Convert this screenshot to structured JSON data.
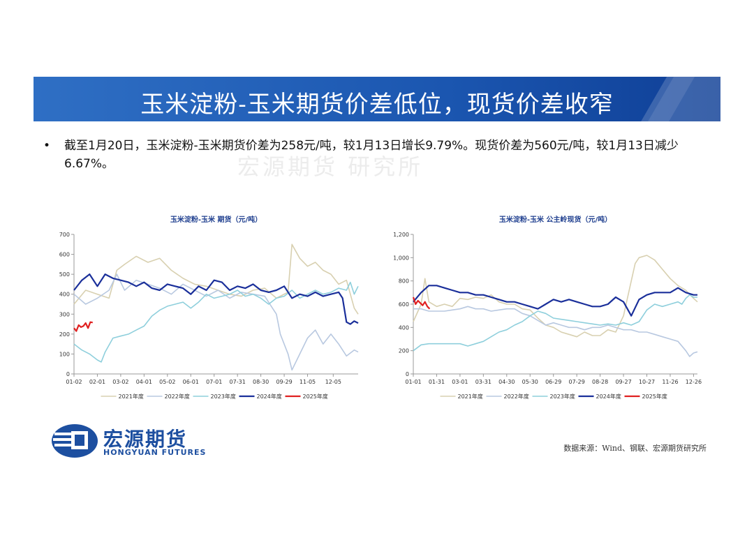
{
  "header": {
    "title": "玉米淀粉-玉米期货价差低位，现货价差收窄"
  },
  "bullet": {
    "symbol": "•",
    "text": "截至1月20日，玉米淀粉-玉米期货价差为258元/吨，较1月13日增长9.79%。现货价差为560元/吨，较1月13日减少6.67%。"
  },
  "watermark": "宏源期货 研究所",
  "logo": {
    "name": "宏源期货",
    "en": "HONGYUAN FUTURES"
  },
  "source": "数据来源：Wind、钢联、宏源期货研究所",
  "colors": {
    "title_bar": "#1b56b0",
    "c2021": "#d8d0b0",
    "c2022": "#b8c8e0",
    "c2023": "#8ecfdc",
    "c2024": "#1a2f9a",
    "c2025": "#e02020"
  },
  "chart_data": [
    {
      "type": "line",
      "title": "玉米淀粉-玉米 期货（元/吨）",
      "xlabel": "",
      "ylabel": "",
      "ylim": [
        0,
        700
      ],
      "yticks": [
        0,
        100,
        200,
        300,
        400,
        500,
        600,
        700
      ],
      "ytick_labels": [
        "0",
        "100",
        "200",
        "300",
        "400",
        "500",
        "600",
        "700"
      ],
      "x_range": [
        0,
        365
      ],
      "xtick_days": [
        0,
        30,
        60,
        90,
        120,
        150,
        180,
        210,
        240,
        270,
        300,
        333
      ],
      "xtick_labels": [
        "01-02",
        "02-01",
        "03-02",
        "04-01",
        "05-02",
        "06-01",
        "07-01",
        "07-31",
        "08-30",
        "09-29",
        "11-05",
        "12-05"
      ],
      "series": [
        {
          "name": "2021年度",
          "x": [
            0,
            15,
            30,
            45,
            55,
            65,
            80,
            95,
            110,
            125,
            140,
            155,
            170,
            185,
            200,
            215,
            230,
            245,
            260,
            275,
            280,
            290,
            300,
            310,
            320,
            330,
            340,
            350,
            360,
            365
          ],
          "y": [
            350,
            420,
            400,
            380,
            520,
            550,
            590,
            560,
            580,
            520,
            480,
            450,
            440,
            420,
            400,
            390,
            420,
            430,
            380,
            410,
            650,
            580,
            540,
            560,
            520,
            500,
            450,
            470,
            330,
            300
          ]
        },
        {
          "name": "2022年度",
          "x": [
            0,
            15,
            30,
            45,
            55,
            65,
            80,
            95,
            110,
            125,
            140,
            155,
            170,
            185,
            200,
            215,
            230,
            245,
            260,
            265,
            275,
            280,
            290,
            300,
            310,
            320,
            330,
            340,
            350,
            360,
            365
          ],
          "y": [
            400,
            350,
            380,
            420,
            500,
            420,
            470,
            450,
            430,
            400,
            450,
            420,
            390,
            420,
            380,
            410,
            400,
            390,
            300,
            200,
            100,
            20,
            100,
            180,
            220,
            150,
            200,
            150,
            90,
            120,
            110
          ]
        },
        {
          "name": "2023年度",
          "x": [
            0,
            10,
            20,
            30,
            35,
            40,
            50,
            60,
            70,
            80,
            90,
            100,
            110,
            120,
            130,
            140,
            150,
            160,
            170,
            180,
            190,
            200,
            210,
            220,
            230,
            240,
            250,
            260,
            270,
            280,
            290,
            300,
            310,
            320,
            330,
            340,
            350,
            355,
            360,
            365
          ],
          "y": [
            150,
            120,
            100,
            70,
            60,
            110,
            180,
            190,
            200,
            220,
            240,
            290,
            320,
            340,
            350,
            360,
            330,
            360,
            400,
            380,
            390,
            400,
            420,
            390,
            400,
            380,
            350,
            380,
            390,
            420,
            380,
            400,
            420,
            400,
            410,
            430,
            420,
            460,
            400,
            440
          ]
        },
        {
          "name": "2024年度",
          "x": [
            0,
            10,
            20,
            30,
            40,
            50,
            60,
            70,
            80,
            90,
            100,
            110,
            120,
            130,
            140,
            150,
            160,
            170,
            180,
            190,
            200,
            210,
            220,
            230,
            240,
            250,
            260,
            270,
            280,
            290,
            300,
            310,
            320,
            330,
            340,
            345,
            350,
            355,
            360,
            365
          ],
          "y": [
            420,
            470,
            500,
            440,
            500,
            480,
            470,
            460,
            440,
            460,
            430,
            420,
            450,
            440,
            430,
            400,
            440,
            420,
            470,
            460,
            420,
            440,
            430,
            450,
            420,
            410,
            420,
            440,
            380,
            400,
            390,
            410,
            390,
            400,
            410,
            380,
            260,
            250,
            265,
            255
          ]
        },
        {
          "name": "2025年度",
          "x": [
            0,
            3,
            6,
            9,
            12,
            15,
            18,
            21,
            24
          ],
          "y": [
            230,
            215,
            245,
            235,
            240,
            255,
            230,
            260,
            258
          ]
        }
      ]
    },
    {
      "type": "line",
      "title": "玉米淀粉-玉米 公主岭现货（元/吨）",
      "xlabel": "",
      "ylabel": "",
      "ylim": [
        0,
        1200
      ],
      "yticks": [
        0,
        200,
        400,
        600,
        800,
        1000,
        1200
      ],
      "ytick_labels": [
        "0",
        "200",
        "400",
        "600",
        "800",
        "1,000",
        "1,200"
      ],
      "x_range": [
        0,
        365
      ],
      "xtick_days": [
        0,
        30,
        60,
        90,
        120,
        150,
        180,
        210,
        240,
        270,
        300,
        330,
        360
      ],
      "xtick_labels": [
        "01-01",
        "01-31",
        "03-01",
        "03-31",
        "04-30",
        "05-30",
        "06-29",
        "07-29",
        "08-28",
        "09-27",
        "10-27",
        "11-26",
        "12-26"
      ],
      "series": [
        {
          "name": "2021年度",
          "x": [
            0,
            10,
            15,
            20,
            30,
            40,
            50,
            60,
            70,
            80,
            90,
            100,
            110,
            120,
            130,
            140,
            150,
            160,
            170,
            180,
            190,
            200,
            210,
            220,
            230,
            240,
            250,
            260,
            270,
            280,
            285,
            290,
            300,
            310,
            320,
            330,
            340,
            350,
            360,
            365
          ],
          "y": [
            450,
            600,
            820,
            620,
            580,
            600,
            580,
            650,
            640,
            660,
            650,
            680,
            620,
            600,
            600,
            560,
            550,
            480,
            420,
            400,
            360,
            340,
            320,
            360,
            330,
            330,
            380,
            360,
            500,
            800,
            950,
            1000,
            1020,
            980,
            900,
            820,
            760,
            720,
            650,
            620
          ]
        },
        {
          "name": "2022年度",
          "x": [
            0,
            10,
            20,
            30,
            40,
            50,
            60,
            70,
            80,
            90,
            100,
            110,
            120,
            130,
            140,
            150,
            160,
            170,
            180,
            190,
            200,
            210,
            220,
            230,
            240,
            250,
            260,
            270,
            280,
            290,
            300,
            310,
            320,
            330,
            340,
            350,
            355,
            360,
            365
          ],
          "y": [
            560,
            560,
            540,
            540,
            540,
            550,
            560,
            580,
            560,
            560,
            540,
            550,
            560,
            560,
            520,
            500,
            460,
            420,
            440,
            420,
            400,
            400,
            380,
            400,
            400,
            420,
            400,
            380,
            380,
            360,
            360,
            340,
            320,
            300,
            280,
            200,
            150,
            180,
            190
          ]
        },
        {
          "name": "2023年度",
          "x": [
            0,
            10,
            20,
            30,
            40,
            50,
            60,
            70,
            80,
            90,
            100,
            110,
            120,
            130,
            140,
            150,
            160,
            170,
            180,
            190,
            200,
            210,
            220,
            230,
            240,
            250,
            260,
            270,
            280,
            290,
            300,
            310,
            320,
            330,
            340,
            345,
            350,
            355,
            360,
            365
          ],
          "y": [
            200,
            250,
            260,
            260,
            260,
            260,
            260,
            240,
            260,
            280,
            320,
            360,
            380,
            420,
            450,
            500,
            540,
            520,
            480,
            470,
            460,
            450,
            440,
            430,
            420,
            430,
            420,
            440,
            420,
            450,
            550,
            600,
            580,
            600,
            620,
            600,
            650,
            680,
            660,
            660
          ]
        },
        {
          "name": "2024年度",
          "x": [
            0,
            10,
            20,
            30,
            40,
            50,
            60,
            70,
            80,
            90,
            100,
            110,
            120,
            130,
            140,
            150,
            160,
            170,
            180,
            190,
            200,
            210,
            220,
            230,
            240,
            250,
            260,
            270,
            280,
            290,
            300,
            310,
            320,
            330,
            340,
            350,
            360,
            365
          ],
          "y": [
            620,
            700,
            760,
            760,
            740,
            720,
            700,
            700,
            680,
            680,
            660,
            640,
            620,
            620,
            600,
            580,
            560,
            600,
            640,
            620,
            640,
            620,
            600,
            580,
            580,
            600,
            660,
            620,
            500,
            640,
            680,
            700,
            700,
            700,
            740,
            700,
            680,
            680
          ]
        },
        {
          "name": "2025年度",
          "x": [
            0,
            3,
            6,
            9,
            12,
            15,
            18,
            21
          ],
          "y": [
            660,
            600,
            630,
            610,
            590,
            620,
            580,
            560
          ]
        }
      ]
    }
  ]
}
